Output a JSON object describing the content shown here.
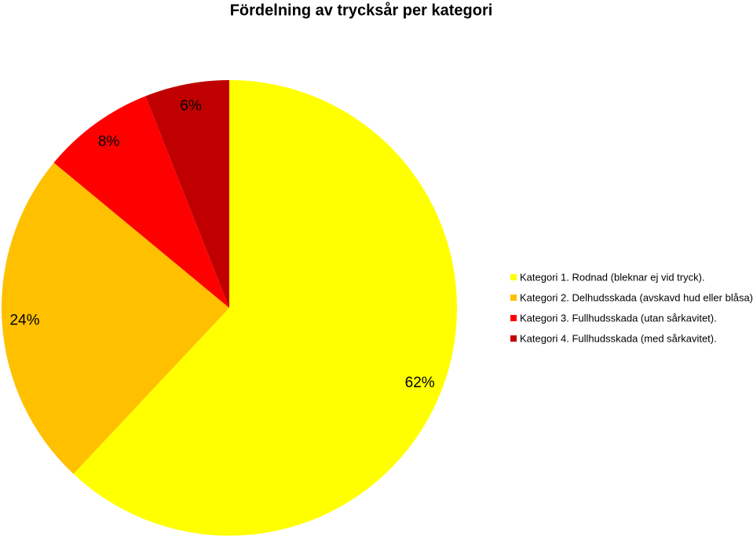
{
  "chart_data": {
    "type": "pie",
    "title": "Fördelning av trycksår per kategori",
    "categories": [
      "Kategori 1. Rodnad (bleknar ej vid tryck).",
      "Kategori 2. Delhudsskada (avskavd hud eller blåsa).",
      "Kategori 3. Fullhudsskada (utan sårkavitet).",
      "Kategori 4. Fullhudsskada (med sårkavitet)."
    ],
    "values": [
      62,
      24,
      8,
      6
    ],
    "value_labels": [
      "62%",
      "24%",
      "8%",
      "6%"
    ],
    "colors": [
      "#ffff00",
      "#ffc000",
      "#ff0000",
      "#c00000"
    ],
    "legend": "right"
  }
}
